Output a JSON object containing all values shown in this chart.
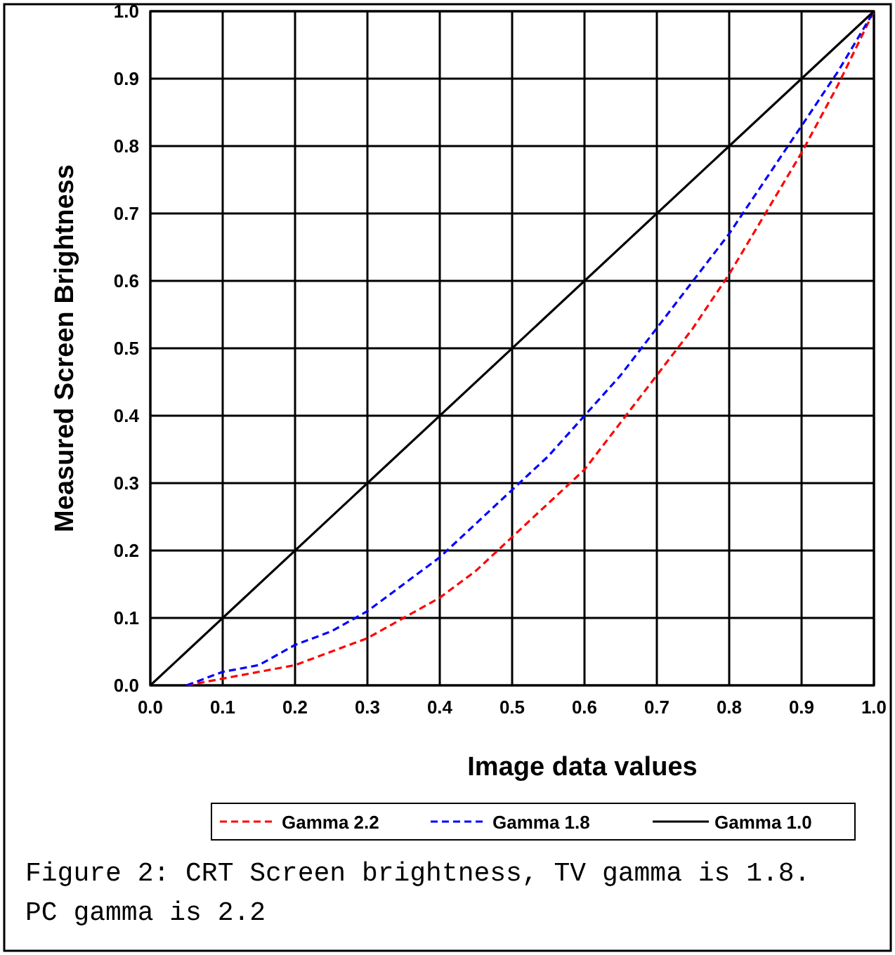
{
  "chart_data": {
    "type": "line",
    "xlabel": "Image data values",
    "ylabel": "Measured Screen Brightness",
    "xlim": [
      0,
      1
    ],
    "ylim": [
      0,
      1
    ],
    "xticks": [
      {
        "value": 0,
        "label": "0.0"
      },
      {
        "value": 0.1,
        "label": "0.1"
      },
      {
        "value": 0.2,
        "label": "0.2"
      },
      {
        "value": 0.3,
        "label": "0.3"
      },
      {
        "value": 0.4,
        "label": "0.4"
      },
      {
        "value": 0.5,
        "label": "0.5"
      },
      {
        "value": 0.6,
        "label": "0.6"
      },
      {
        "value": 0.7,
        "label": "0.7"
      },
      {
        "value": 0.8,
        "label": "0.8"
      },
      {
        "value": 0.9,
        "label": "0.9"
      },
      {
        "value": 1,
        "label": "1.0"
      }
    ],
    "yticks": [
      {
        "value": 0,
        "label": "0.0"
      },
      {
        "value": 0.1,
        "label": "0.1"
      },
      {
        "value": 0.2,
        "label": "0.2"
      },
      {
        "value": 0.3,
        "label": "0.3"
      },
      {
        "value": 0.4,
        "label": "0.4"
      },
      {
        "value": 0.5,
        "label": "0.5"
      },
      {
        "value": 0.6,
        "label": "0.6"
      },
      {
        "value": 0.7,
        "label": "0.7"
      },
      {
        "value": 0.8,
        "label": "0.8"
      },
      {
        "value": 0.9,
        "label": "0.9"
      },
      {
        "value": 1,
        "label": "1.0"
      }
    ],
    "grid": true,
    "legend": "bottom",
    "series": [
      {
        "name": "Gamma 2.2",
        "color": "#ff0000",
        "line_style": "dashed",
        "x": [
          0.05,
          0.1,
          0.15,
          0.2,
          0.25,
          0.3,
          0.35,
          0.4,
          0.45,
          0.5,
          0.55,
          0.6,
          0.65,
          0.7,
          0.75,
          0.8,
          0.85,
          0.9,
          0.95,
          1
        ],
        "values": [
          0,
          0.01,
          0.02,
          0.03,
          0.05,
          0.07,
          0.1,
          0.13,
          0.17,
          0.22,
          0.27,
          0.32,
          0.39,
          0.46,
          0.53,
          0.61,
          0.7,
          0.79,
          0.89,
          1
        ]
      },
      {
        "name": "Gamma 1.8",
        "color": "#0000ff",
        "line_style": "dashed",
        "x": [
          0.05,
          0.1,
          0.15,
          0.2,
          0.25,
          0.3,
          0.35,
          0.4,
          0.45,
          0.5,
          0.55,
          0.6,
          0.65,
          0.7,
          0.75,
          0.8,
          0.85,
          0.9,
          0.95,
          1
        ],
        "values": [
          0,
          0.02,
          0.03,
          0.06,
          0.08,
          0.11,
          0.15,
          0.19,
          0.24,
          0.29,
          0.34,
          0.4,
          0.46,
          0.53,
          0.6,
          0.67,
          0.75,
          0.83,
          0.91,
          1
        ]
      },
      {
        "name": "Gamma 1.0",
        "color": "#000000",
        "line_style": "solid",
        "x": [
          0,
          1
        ],
        "values": [
          0,
          1
        ]
      }
    ],
    "annotations": [
      "Figure 2: CRT Screen brightness, TV gamma is 1.8. PC gamma is 2.2"
    ]
  }
}
